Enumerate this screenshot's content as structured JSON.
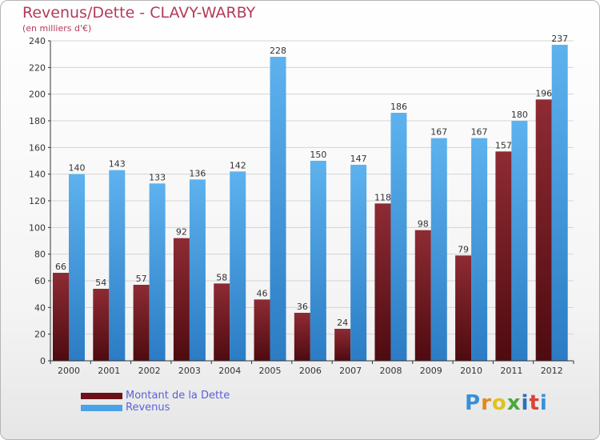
{
  "chart_data": {
    "type": "bar",
    "title": "Revenus/Dette - CLAVY-WARBY",
    "subtitle": "(en milliers d'€)",
    "categories": [
      "2000",
      "2001",
      "2002",
      "2003",
      "2004",
      "2005",
      "2006",
      "2007",
      "2008",
      "2009",
      "2010",
      "2011",
      "2012"
    ],
    "series": [
      {
        "name": "Montant de la Dette",
        "color": "#7a1f26",
        "values": [
          66,
          54,
          57,
          92,
          58,
          46,
          36,
          24,
          118,
          98,
          79,
          157,
          196
        ]
      },
      {
        "name": "Revenus",
        "color": "#4aa3e6",
        "values": [
          140,
          143,
          133,
          136,
          142,
          228,
          150,
          147,
          186,
          167,
          167,
          180,
          237
        ]
      }
    ],
    "ylim": [
      0,
      240
    ],
    "yticks": [
      0,
      20,
      40,
      60,
      80,
      100,
      120,
      140,
      160,
      180,
      200,
      220,
      240
    ],
    "grid": true,
    "legend": "bottom-left"
  },
  "logo_text": "Proxiti",
  "logo_letters": [
    "P",
    "r",
    "o",
    "x",
    "i",
    "t",
    "i"
  ]
}
